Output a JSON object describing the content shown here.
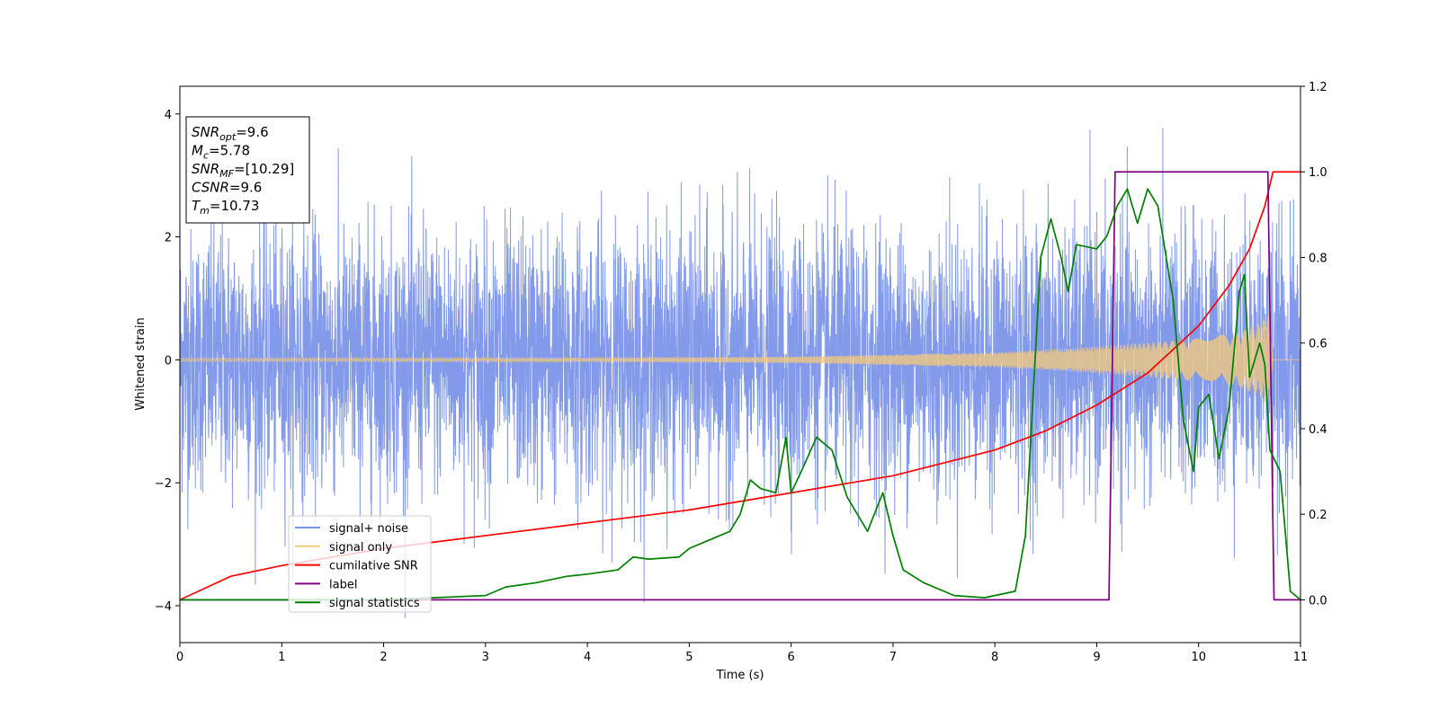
{
  "chart_data": {
    "type": "line",
    "xlabel": "Time (s)",
    "ylabel": "Whitened strain",
    "xlim": [
      0,
      11
    ],
    "ylim": [
      -4.6,
      4.45
    ],
    "y2lim": [
      -0.1,
      1.2
    ],
    "xticks": [
      "0",
      "1",
      "2",
      "3",
      "4",
      "5",
      "6",
      "7",
      "8",
      "9",
      "10",
      "11"
    ],
    "yticks": [
      "4",
      "2",
      "0",
      "−2",
      "−4"
    ],
    "y2ticks": [
      "1.2",
      "1.0",
      "0.8",
      "0.6",
      "0.4",
      "0.2",
      "0.0"
    ],
    "textbox": [
      {
        "base": "SNR",
        "sub": "opt",
        "rest": "=9.6"
      },
      {
        "base": "M",
        "sub": "c",
        "rest": "=5.78"
      },
      {
        "base": "SNR",
        "sub": "MF",
        "rest": "=[10.29]"
      },
      {
        "base": "CSNR",
        "sub": "",
        "rest": "=9.6"
      },
      {
        "base": "T",
        "sub": "m",
        "rest": "=10.73"
      }
    ],
    "legend_position": "lower-left",
    "series": [
      {
        "name": "signal+ noise",
        "axis": "left",
        "color": "#7b95e8",
        "description": "noise band roughly between -2.3 and 2.5, spikes up to ~4.0 and down to ~-4.2"
      },
      {
        "name": "signal only",
        "axis": "left",
        "color": "#f5c97a",
        "envelope": {
          "x": [
            0,
            4,
            6,
            8,
            9,
            9.5,
            10,
            10.4,
            10.6,
            10.7,
            10.73
          ],
          "amp": [
            0.03,
            0.03,
            0.05,
            0.12,
            0.22,
            0.28,
            0.35,
            0.45,
            0.6,
            0.8,
            0.0
          ]
        }
      },
      {
        "name": "cumilative SNR",
        "axis": "right",
        "color": "#ff0000",
        "x": [
          0,
          0.5,
          1,
          2,
          3,
          4,
          5,
          6,
          7,
          8,
          8.5,
          9,
          9.5,
          10,
          10.3,
          10.5,
          10.65,
          10.73,
          11
        ],
        "y": [
          0.0,
          0.055,
          0.08,
          0.12,
          0.15,
          0.18,
          0.21,
          0.25,
          0.29,
          0.35,
          0.395,
          0.455,
          0.53,
          0.64,
          0.735,
          0.82,
          0.92,
          1.0,
          1.0
        ]
      },
      {
        "name": "label",
        "axis": "right",
        "color": "#800080",
        "x": [
          0,
          9.12,
          9.18,
          10.68,
          10.74,
          11
        ],
        "y": [
          0.0,
          0.0,
          1.0,
          1.0,
          0.0,
          0.0
        ]
      },
      {
        "name": "signal statistics",
        "axis": "right",
        "color": "#008000",
        "x": [
          0,
          1,
          2,
          2.5,
          3,
          3.2,
          3.5,
          3.8,
          4.0,
          4.3,
          4.45,
          4.6,
          4.9,
          5.0,
          5.2,
          5.4,
          5.5,
          5.6,
          5.7,
          5.85,
          5.95,
          6.0,
          6.1,
          6.25,
          6.4,
          6.55,
          6.75,
          6.9,
          7.0,
          7.1,
          7.3,
          7.6,
          7.9,
          8.2,
          8.3,
          8.45,
          8.55,
          8.65,
          8.72,
          8.8,
          9.0,
          9.1,
          9.2,
          9.3,
          9.4,
          9.5,
          9.6,
          9.75,
          9.85,
          9.95,
          10.0,
          10.1,
          10.2,
          10.3,
          10.4,
          10.45,
          10.5,
          10.6,
          10.65,
          10.7,
          10.8,
          10.9,
          11.0
        ],
        "y": [
          0.0,
          0.0,
          0.0,
          0.005,
          0.01,
          0.03,
          0.04,
          0.055,
          0.06,
          0.07,
          0.1,
          0.095,
          0.1,
          0.12,
          0.14,
          0.16,
          0.2,
          0.28,
          0.26,
          0.25,
          0.38,
          0.25,
          0.3,
          0.38,
          0.35,
          0.24,
          0.16,
          0.25,
          0.15,
          0.07,
          0.04,
          0.01,
          0.005,
          0.02,
          0.15,
          0.8,
          0.89,
          0.8,
          0.72,
          0.83,
          0.82,
          0.85,
          0.92,
          0.96,
          0.88,
          0.96,
          0.92,
          0.7,
          0.42,
          0.3,
          0.45,
          0.48,
          0.33,
          0.45,
          0.72,
          0.76,
          0.52,
          0.6,
          0.55,
          0.35,
          0.3,
          0.02,
          0.0
        ]
      }
    ]
  }
}
